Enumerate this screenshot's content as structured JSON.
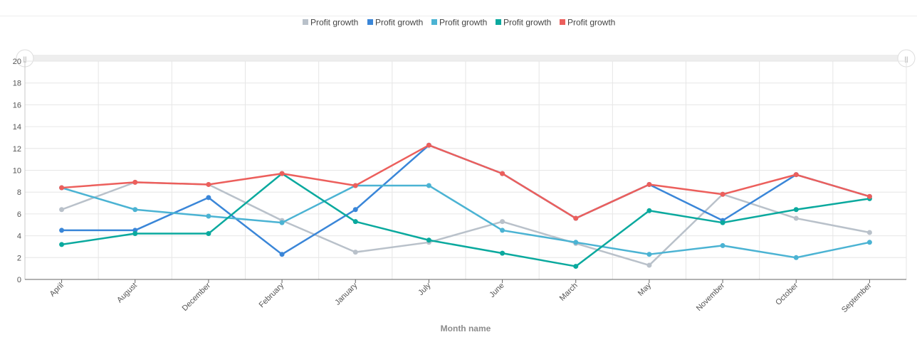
{
  "chart_data": {
    "type": "line",
    "xlabel": "Month name",
    "ylabel": "",
    "ylim": [
      0,
      20
    ],
    "yticks": [
      0,
      2,
      4,
      6,
      8,
      10,
      12,
      14,
      16,
      18,
      20
    ],
    "grid": true,
    "legend_position": "top-center",
    "categories": [
      "April",
      "August",
      "December",
      "February",
      "January",
      "July",
      "June",
      "March",
      "May",
      "November",
      "October",
      "September"
    ],
    "series": [
      {
        "name": "Profit growth",
        "color": "#b9c1ca",
        "values": [
          6.4,
          8.9,
          8.7,
          5.4,
          2.5,
          3.4,
          5.3,
          3.3,
          1.3,
          7.8,
          5.6,
          4.3
        ]
      },
      {
        "name": "Profit growth",
        "color": "#3a86d8",
        "values": [
          4.5,
          4.5,
          7.5,
          2.3,
          6.4,
          12.3,
          9.7,
          5.6,
          8.7,
          5.4,
          9.6,
          7.6
        ]
      },
      {
        "name": "Profit growth",
        "color": "#4bb3d3",
        "values": [
          8.4,
          6.4,
          5.8,
          5.2,
          8.6,
          8.6,
          4.5,
          3.4,
          2.3,
          3.1,
          2.0,
          3.4
        ]
      },
      {
        "name": "Profit growth",
        "color": "#0aa99e",
        "values": [
          3.2,
          4.2,
          4.2,
          9.7,
          5.3,
          3.6,
          2.4,
          1.2,
          6.3,
          5.2,
          6.4,
          7.4
        ]
      },
      {
        "name": "Profit growth",
        "color": "#ec5f5c",
        "values": [
          8.4,
          8.9,
          8.7,
          9.7,
          8.6,
          12.3,
          9.7,
          5.6,
          8.7,
          7.8,
          9.6,
          7.6
        ]
      }
    ]
  },
  "slider": {
    "handle_left_icon": "grip-icon",
    "handle_right_icon": "grip-icon",
    "handle_glyph": "||"
  }
}
